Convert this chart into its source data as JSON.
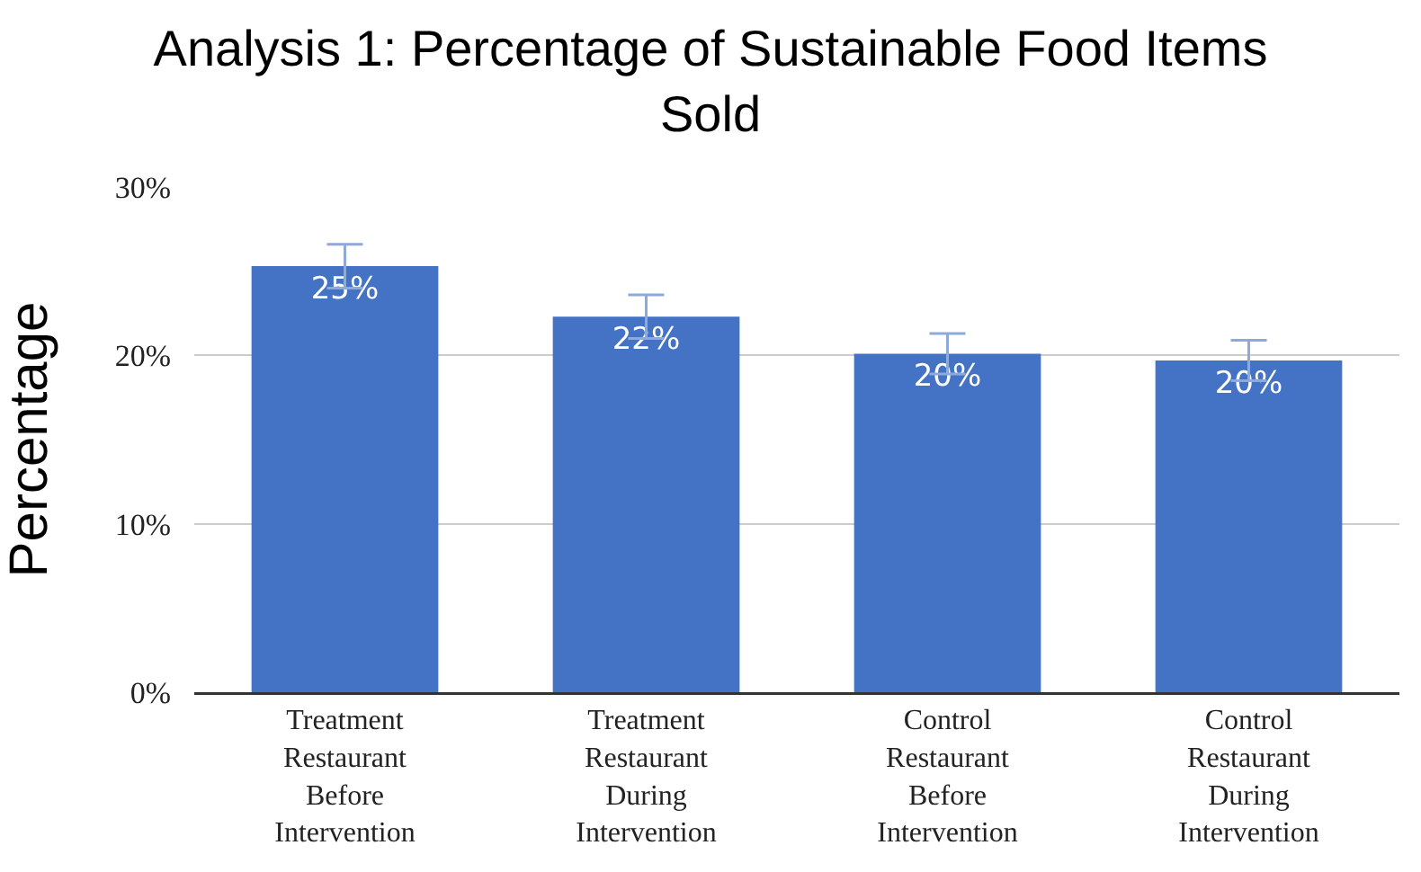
{
  "chart_data": {
    "type": "bar",
    "title": "Analysis 1: Percentage of Sustainable Food Items Sold",
    "ylabel": "Percentage",
    "categories": [
      "Treatment Restaurant Before Intervention",
      "Treatment Restaurant During Intervention",
      "Control Restaurant Before Intervention",
      "Control Restaurant During Intervention"
    ],
    "values": [
      25.3,
      22.3,
      20.1,
      19.7
    ],
    "value_labels": [
      "25%",
      "22%",
      "20%",
      "20%"
    ],
    "errors": [
      1.3,
      1.3,
      1.2,
      1.2
    ],
    "color": "#4472c4",
    "ylim": [
      0,
      30
    ],
    "yticks": [
      {
        "value": 0,
        "label": "0%"
      },
      {
        "value": 10,
        "label": "10%"
      },
      {
        "value": 20,
        "label": "20%"
      },
      {
        "value": 30,
        "label": "30%"
      }
    ],
    "grid": "y"
  }
}
